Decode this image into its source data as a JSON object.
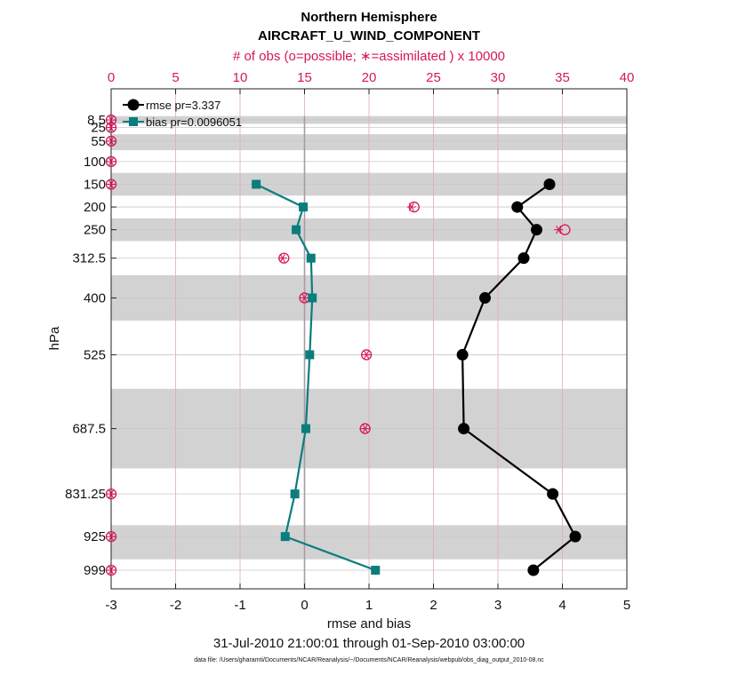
{
  "chart_data": {
    "type": "line",
    "title": "Northern Hemisphere",
    "subtitle": "AIRCRAFT_U_WIND_COMPONENT",
    "top_axis_label": "# of obs (o=possible; ∗=assimilated ) x 10000",
    "xlabel": "rmse and bias",
    "ylabel": "hPa",
    "date_range": "31-Jul-2010 21:00:01 through 01-Sep-2010 03:00:00",
    "footnote": "data file: /Users/gharamti/Documents/NCAR/Reanalysis/~/Documents/NCAR/Reanalysis/webpub/obs_diag_output_2010-08.nc",
    "xlim": [
      -3,
      5
    ],
    "x_ticks": [
      "-3",
      "-2",
      "-1",
      "0",
      "1",
      "2",
      "3",
      "4",
      "5"
    ],
    "top_xlim": [
      0,
      40
    ],
    "top_ticks": [
      "0",
      "5",
      "10",
      "15",
      "20",
      "25",
      "30",
      "35",
      "40"
    ],
    "y_levels": [
      {
        "label": "8.5",
        "value": 8.5
      },
      {
        "label": "25",
        "value": 25
      },
      {
        "label": "55",
        "value": 55
      },
      {
        "label": "100",
        "value": 100
      },
      {
        "label": "150",
        "value": 150
      },
      {
        "label": "200",
        "value": 200
      },
      {
        "label": "250",
        "value": 250
      },
      {
        "label": "312.5",
        "value": 312.5
      },
      {
        "label": "400",
        "value": 400
      },
      {
        "label": "525",
        "value": 525
      },
      {
        "label": "687.5",
        "value": 687.5
      },
      {
        "label": "831.25",
        "value": 831.25
      },
      {
        "label": "925",
        "value": 925
      },
      {
        "label": "999",
        "value": 999
      }
    ],
    "ylim": [
      -60,
      1040
    ],
    "shaded_bands": [
      [
        0,
        17
      ],
      [
        40,
        75
      ],
      [
        125,
        175
      ],
      [
        225,
        275
      ],
      [
        350,
        450
      ],
      [
        600,
        775
      ],
      [
        900,
        975
      ]
    ],
    "series": [
      {
        "name": "rmse",
        "legend": "rmse pr=3.337",
        "color": "#000000",
        "marker": "circle",
        "points": [
          {
            "p": 150,
            "v": 3.8
          },
          {
            "p": 200,
            "v": 3.3
          },
          {
            "p": 250,
            "v": 3.6
          },
          {
            "p": 312.5,
            "v": 3.4
          },
          {
            "p": 400,
            "v": 2.8
          },
          {
            "p": 525,
            "v": 2.45
          },
          {
            "p": 687.5,
            "v": 2.47
          },
          {
            "p": 831.25,
            "v": 3.85
          },
          {
            "p": 925,
            "v": 4.2
          },
          {
            "p": 999,
            "v": 3.55
          }
        ]
      },
      {
        "name": "bias",
        "legend": "bias pr=0.0096051",
        "color": "#0b7d7d",
        "marker": "square",
        "points": [
          {
            "p": 150,
            "v": -0.75
          },
          {
            "p": 200,
            "v": -0.02
          },
          {
            "p": 250,
            "v": -0.13
          },
          {
            "p": 312.5,
            "v": 0.1
          },
          {
            "p": 400,
            "v": 0.12
          },
          {
            "p": 525,
            "v": 0.08
          },
          {
            "p": 687.5,
            "v": 0.02
          },
          {
            "p": 831.25,
            "v": -0.15
          },
          {
            "p": 925,
            "v": -0.3
          },
          {
            "p": 999,
            "v": 1.1
          }
        ]
      }
    ],
    "obs_counts": {
      "color": "#d6175a",
      "points": [
        {
          "p": 8.5,
          "possible": 0,
          "assimilated": 0
        },
        {
          "p": 25,
          "possible": 0,
          "assimilated": 0
        },
        {
          "p": 55,
          "possible": 0,
          "assimilated": 0
        },
        {
          "p": 100,
          "possible": 0,
          "assimilated": 0
        },
        {
          "p": 150,
          "possible": 0,
          "assimilated": 0
        },
        {
          "p": 200,
          "possible": 23.5,
          "assimilated": 23.3
        },
        {
          "p": 250,
          "possible": 35.2,
          "assimilated": 34.7
        },
        {
          "p": 312.5,
          "possible": 13.4,
          "assimilated": 13.3
        },
        {
          "p": 400,
          "possible": 15.0,
          "assimilated": 15.0
        },
        {
          "p": 525,
          "possible": 19.8,
          "assimilated": 19.8
        },
        {
          "p": 687.5,
          "possible": 19.7,
          "assimilated": 19.7
        },
        {
          "p": 831.25,
          "possible": 0,
          "assimilated": 0
        },
        {
          "p": 925,
          "possible": 0,
          "assimilated": 0
        },
        {
          "p": 999,
          "possible": 0,
          "assimilated": 0
        }
      ]
    }
  }
}
